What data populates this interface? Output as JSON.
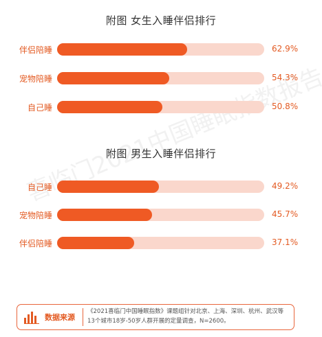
{
  "colors": {
    "bar_fill": "#ef5a24",
    "bar_track": "#fad7cc",
    "accent_text": "#e35a22"
  },
  "watermark": "喜临门2021中国睡眠指数报告",
  "chart_data": [
    {
      "type": "bar",
      "orientation": "horizontal",
      "title": "附图 女生入睡伴侣排行",
      "categories": [
        "伴侣陪睡",
        "宠物陪睡",
        "自己睡"
      ],
      "values": [
        62.9,
        54.3,
        50.8
      ],
      "value_labels": [
        "62.9%",
        "54.3%",
        "50.8%"
      ],
      "xlim": [
        0,
        100
      ],
      "grid": false
    },
    {
      "type": "bar",
      "orientation": "horizontal",
      "title": "附图 男生入睡伴侣排行",
      "categories": [
        "自己睡",
        "宠物陪睡",
        "伴侣陪睡"
      ],
      "values": [
        49.2,
        45.7,
        37.1
      ],
      "value_labels": [
        "49.2%",
        "45.7%",
        "37.1%"
      ],
      "xlim": [
        0,
        100
      ],
      "grid": false
    }
  ],
  "source": {
    "icon": "bar-chart-icon",
    "label": "数据来源",
    "line1": "《2021喜临门中国睡眠指数》课题组针对北京、上海、深圳、杭州、武汉等",
    "line2": "13个城市18岁-50岁人群开展的定量调查，N=2600。"
  }
}
